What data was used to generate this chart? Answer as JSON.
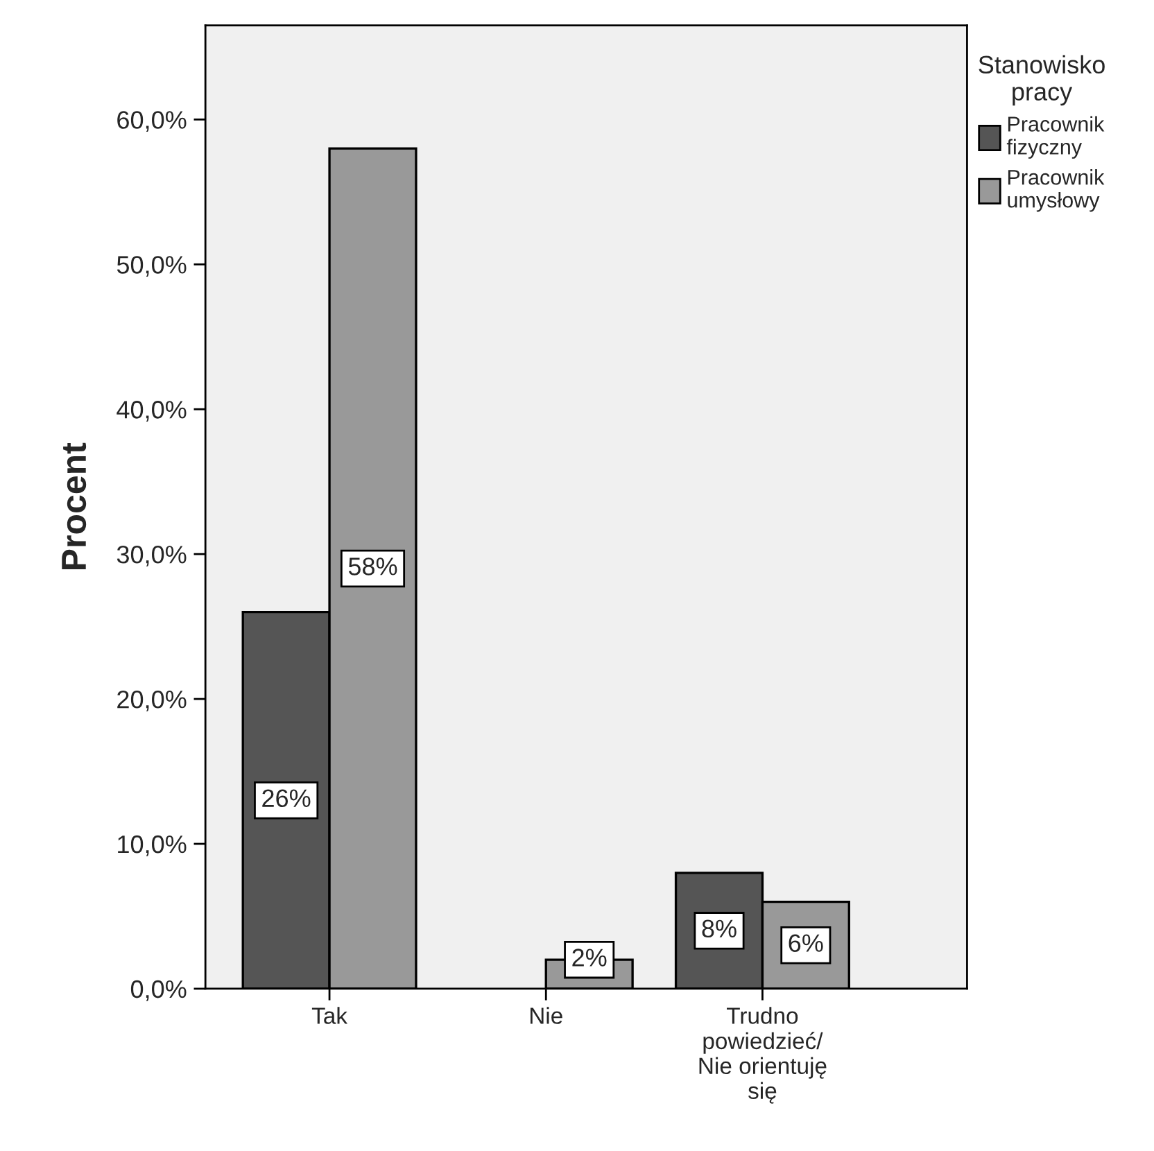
{
  "chart_data": {
    "type": "bar",
    "ylabel": "Procent",
    "legend_title": "Stanowisko\npracy",
    "categories": [
      "Tak",
      "Nie",
      "Trudno\npowiedzieć/\nNie orientuję\nsię"
    ],
    "series": [
      {
        "name": "Pracownik\nfizyczny",
        "color": "#555555",
        "values": [
          26,
          null,
          8
        ],
        "value_labels": [
          "26%",
          null,
          "8%"
        ]
      },
      {
        "name": "Pracownik\numysłowy",
        "color": "#999999",
        "values": [
          58,
          2,
          6
        ],
        "value_labels": [
          "58%",
          "2%",
          "6%"
        ]
      }
    ],
    "ylim": [
      0,
      66.5
    ],
    "yticks": [
      {
        "value": 0,
        "label": "0,0%"
      },
      {
        "value": 10,
        "label": "10,0%"
      },
      {
        "value": 20,
        "label": "20,0%"
      },
      {
        "value": 30,
        "label": "30,0%"
      },
      {
        "value": 40,
        "label": "40,0%"
      },
      {
        "value": 50,
        "label": "50,0%"
      },
      {
        "value": 60,
        "label": "60,0%"
      }
    ],
    "grid": false,
    "legend": "top right"
  }
}
